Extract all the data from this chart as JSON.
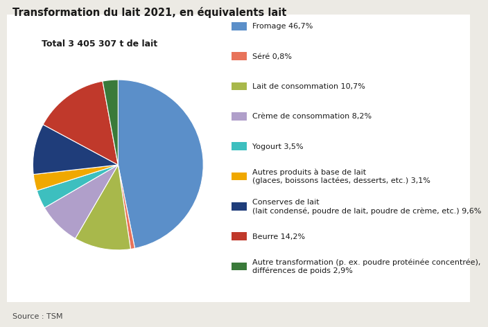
{
  "title": "Transformation du lait 2021, en équivalents lait",
  "subtitle": "Total 3 405 307 t de lait",
  "source": "Source : TSM",
  "slices": [
    {
      "label": "Fromage 46,7%",
      "value": 46.7,
      "color": "#5b8fc9"
    },
    {
      "label": "Séré 0,8%",
      "value": 0.8,
      "color": "#e8735a"
    },
    {
      "label": "Lait de consommation 10,7%",
      "value": 10.7,
      "color": "#a8b84b"
    },
    {
      "label": "Crème de consommation 8,2%",
      "value": 8.2,
      "color": "#b09fca"
    },
    {
      "label": "Yogourt 3,5%",
      "value": 3.5,
      "color": "#3dbfbf"
    },
    {
      "label": "Autres produits à base de lait\n(glaces, boissons lactées, desserts, etc.) 3,1%",
      "value": 3.1,
      "color": "#f0a800"
    },
    {
      "label": "Conserves de lait\n(lait condensé, poudre de lait, poudre de crème, etc.) 9,6%",
      "value": 9.6,
      "color": "#1f3d7a"
    },
    {
      "label": "Beurre 14,2%",
      "value": 14.2,
      "color": "#c0392b"
    },
    {
      "label": "Autre transformation (p. ex. poudre protéinée concentrée),\ndifférences de poids 2,9%",
      "value": 2.9,
      "color": "#3a7a3a"
    }
  ],
  "background_color": "#eceae4",
  "plot_bg_color": "#ffffff",
  "title_fontsize": 10.5,
  "legend_fontsize": 8.0,
  "subtitle_fontsize": 9.0,
  "source_fontsize": 8.0
}
